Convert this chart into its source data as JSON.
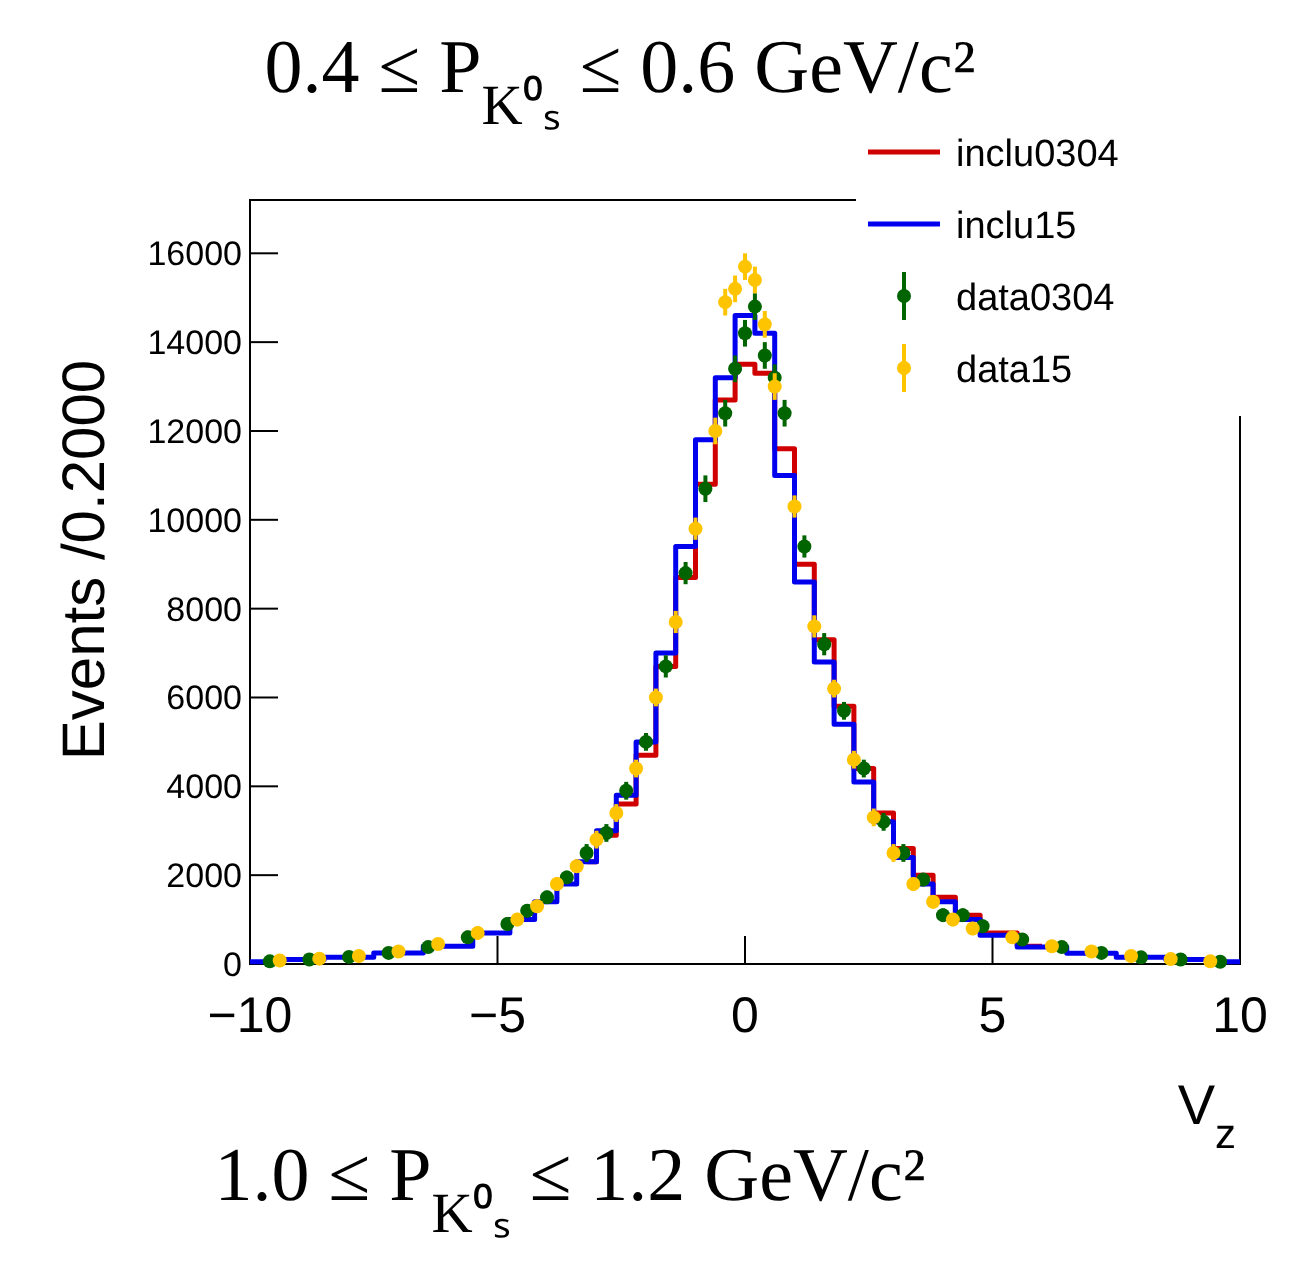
{
  "chart_data": {
    "type": "scatter",
    "title": "0.4 ≤ P$_{K⁰ₛ}$ ≤ 0.6 GeV/c²",
    "xlabel": "V$_{z}$",
    "ylabel": "Events /0.2000",
    "annotations": [
      "1.0 ≤ P$_{K⁰ₛ}$ ≤ 1.2 GeV/c²"
    ],
    "xlim": [
      -10,
      10
    ],
    "xticks": [
      {
        "value": -10,
        "label": "−10"
      },
      {
        "value": -5,
        "label": "−5"
      },
      0,
      5,
      10
    ],
    "ylim": [
      0,
      17200
    ],
    "yticks": [
      0,
      2000,
      4000,
      6000,
      8000,
      10000,
      12000,
      14000,
      16000
    ],
    "legend": "top right",
    "grid": false,
    "marker": "circle",
    "series": [
      {
        "name": "inclu0304",
        "type": "step",
        "marker": "none",
        "color": "#d00000",
        "x": [
          -3.2,
          -2.8,
          -2.4,
          -2,
          -1.6,
          -1.2,
          -0.8,
          -0.4,
          0,
          0.4,
          0.8,
          1.2,
          1.6,
          2,
          2.4,
          2.8,
          3.2,
          3.6,
          4,
          4.5,
          5,
          6
        ],
        "values": [
          2300,
          2900,
          3600,
          4700,
          6700,
          8700,
          10800,
          12700,
          13500,
          13300,
          11600,
          9000,
          7300,
          5800,
          4400,
          3400,
          2600,
          2000,
          1500,
          1100,
          700,
          400
        ]
      },
      {
        "name": "inclu15",
        "type": "step",
        "marker": "none",
        "color": "#0000ee",
        "x": [
          -10,
          -9,
          -8,
          -7,
          -6,
          -5,
          -4.5,
          -4,
          -3.6,
          -3.2,
          -2.8,
          -2.4,
          -2,
          -1.6,
          -1.2,
          -0.8,
          -0.4,
          0,
          0.4,
          0.8,
          1.2,
          1.6,
          2,
          2.4,
          2.8,
          3.2,
          3.6,
          4,
          4.5,
          5,
          6,
          7,
          8,
          9,
          10
        ],
        "values": [
          50,
          100,
          150,
          250,
          400,
          700,
          1000,
          1400,
          1800,
          2300,
          3000,
          3800,
          5000,
          7000,
          9400,
          11800,
          13200,
          14600,
          14200,
          11000,
          8600,
          6800,
          5400,
          4100,
          3200,
          2400,
          1800,
          1400,
          1000,
          650,
          380,
          240,
          150,
          100,
          50
        ]
      },
      {
        "name": "data0304",
        "color": "#006400",
        "x": [
          -9.6,
          -8.8,
          -8,
          -7.2,
          -6.4,
          -5.6,
          -4.8,
          -4.4,
          -4,
          -3.6,
          -3.2,
          -2.8,
          -2.4,
          -2,
          -1.6,
          -1.2,
          -0.8,
          -0.4,
          -0.2,
          0,
          0.2,
          0.4,
          0.6,
          0.8,
          1.2,
          1.6,
          2,
          2.4,
          2.8,
          3.2,
          3.6,
          4,
          4.4,
          4.8,
          5.6,
          6.4,
          7.2,
          8,
          8.8,
          9.6
        ],
        "values": [
          60,
          100,
          160,
          250,
          380,
          600,
          900,
          1200,
          1500,
          1950,
          2500,
          2950,
          3900,
          5000,
          6700,
          8800,
          10700,
          12400,
          13400,
          14200,
          14800,
          13700,
          13200,
          12400,
          9400,
          7200,
          5700,
          4400,
          3200,
          2500,
          1900,
          1100,
          1100,
          850,
          550,
          380,
          250,
          150,
          100,
          50
        ],
        "errors": [
          100,
          100,
          100,
          100,
          100,
          150,
          150,
          150,
          150,
          150,
          200,
          200,
          200,
          200,
          250,
          250,
          300,
          300,
          300,
          300,
          300,
          300,
          300,
          300,
          250,
          250,
          200,
          200,
          200,
          200,
          150,
          150,
          150,
          150,
          100,
          100,
          100,
          100,
          100,
          100
        ]
      },
      {
        "name": "data15",
        "color": "#ffc400",
        "x": [
          -9.4,
          -8.6,
          -7.8,
          -7,
          -6.2,
          -5.4,
          -4.6,
          -4.2,
          -3.8,
          -3.4,
          -3,
          -2.6,
          -2.2,
          -1.8,
          -1.4,
          -1,
          -0.6,
          -0.4,
          -0.2,
          0,
          0.2,
          0.4,
          0.6,
          1,
          1.4,
          1.8,
          2.2,
          2.6,
          3,
          3.4,
          3.8,
          4.2,
          4.6,
          5.4,
          6.2,
          7,
          7.8,
          8.6,
          9.4
        ],
        "values": [
          80,
          120,
          180,
          280,
          450,
          700,
          1000,
          1300,
          1800,
          2200,
          2800,
          3400,
          4400,
          6000,
          7700,
          9800,
          12000,
          14900,
          15200,
          15700,
          15400,
          14400,
          13000,
          10300,
          7600,
          6200,
          4600,
          3300,
          2500,
          1800,
          1400,
          1000,
          800,
          600,
          400,
          280,
          180,
          110,
          60
        ],
        "errors": [
          100,
          100,
          100,
          100,
          100,
          150,
          150,
          150,
          150,
          150,
          200,
          200,
          200,
          200,
          250,
          250,
          300,
          300,
          300,
          300,
          300,
          300,
          300,
          250,
          250,
          200,
          200,
          200,
          200,
          150,
          150,
          150,
          150,
          100,
          100,
          100,
          100,
          100,
          100
        ]
      }
    ]
  }
}
